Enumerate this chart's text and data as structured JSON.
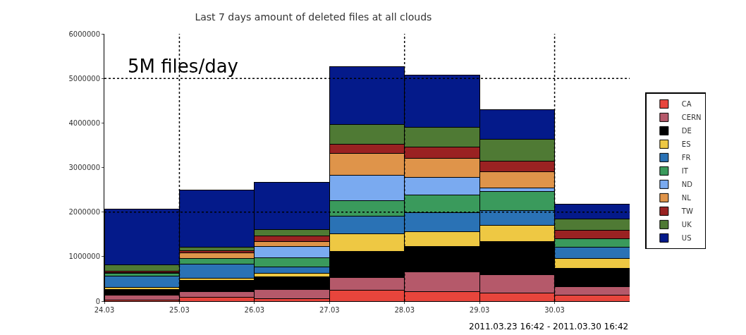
{
  "chart_data": {
    "type": "bar",
    "title": "Last 7 days amount of deleted files at all clouds",
    "stacked": true,
    "x": [
      "2011-03-24T12:00",
      "2011-03-25T12:00",
      "2011-03-26T12:00",
      "2011-03-27T12:00",
      "2011-03-28T12:00",
      "2011-03-29T12:00",
      "2011-03-30T12:00"
    ],
    "xlim": [
      "2011-03-24",
      "2011-03-31"
    ],
    "xticks": [
      {
        "value": "2011-03-24",
        "label": "24.03"
      },
      {
        "value": "2011-03-25",
        "label": "25.03"
      },
      {
        "value": "2011-03-26",
        "label": "26.03"
      },
      {
        "value": "2011-03-27",
        "label": "27.03"
      },
      {
        "value": "2011-03-28",
        "label": "28.03"
      },
      {
        "value": "2011-03-29",
        "label": "29.03"
      },
      {
        "value": "2011-03-30",
        "label": "30.03"
      }
    ],
    "ylim": [
      0,
      6000000
    ],
    "yticks": [
      0,
      1000000,
      2000000,
      3000000,
      4000000,
      5000000,
      6000000
    ],
    "series": [
      {
        "name": "CA",
        "color": "#e8453c",
        "values": [
          20000,
          80000,
          50000,
          240000,
          210000,
          190000,
          130000
        ]
      },
      {
        "name": "CERN",
        "color": "#b5596a",
        "values": [
          120000,
          140000,
          210000,
          290000,
          450000,
          400000,
          190000
        ]
      },
      {
        "name": "DE",
        "color": "#000000",
        "values": [
          120000,
          240000,
          290000,
          580000,
          560000,
          740000,
          420000
        ]
      },
      {
        "name": "ES",
        "color": "#eec843",
        "values": [
          50000,
          60000,
          80000,
          400000,
          340000,
          370000,
          210000
        ]
      },
      {
        "name": "FR",
        "color": "#2a72b5",
        "values": [
          260000,
          310000,
          130000,
          400000,
          420000,
          340000,
          260000
        ]
      },
      {
        "name": "IT",
        "color": "#3a9a5c",
        "values": [
          50000,
          130000,
          210000,
          340000,
          400000,
          420000,
          190000
        ]
      },
      {
        "name": "ND",
        "color": "#7aaaf0",
        "values": [
          0,
          0,
          260000,
          580000,
          400000,
          80000,
          0
        ]
      },
      {
        "name": "NL",
        "color": "#df944a",
        "values": [
          20000,
          130000,
          110000,
          480000,
          420000,
          370000,
          0
        ]
      },
      {
        "name": "TW",
        "color": "#9a2222",
        "values": [
          30000,
          40000,
          130000,
          210000,
          260000,
          240000,
          190000
        ]
      },
      {
        "name": "UK",
        "color": "#4f7a34",
        "values": [
          140000,
          80000,
          130000,
          450000,
          450000,
          480000,
          260000
        ]
      },
      {
        "name": "US",
        "color": "#041a8a",
        "values": [
          1260000,
          1290000,
          1060000,
          1300000,
          1170000,
          670000,
          330000
        ]
      }
    ],
    "ref_lines": [
      {
        "axis": "y",
        "value": 5000000,
        "line_style": "dotted",
        "color": "#000000"
      },
      {
        "axis": "y",
        "value": 2000000,
        "line_style": "dotted",
        "color": "#000000"
      },
      {
        "axis": "x",
        "value": "2011-03-25",
        "line_style": "dotted",
        "color": "#000000"
      },
      {
        "axis": "x",
        "value": "2011-03-28",
        "line_style": "dotted",
        "color": "#000000"
      },
      {
        "axis": "x",
        "value": "2011-03-30",
        "line_style": "dotted",
        "color": "#000000"
      }
    ],
    "annotations": [
      {
        "text": "5M files/day",
        "x": "2011-03-24T07:00",
        "y": 5000000
      },
      "2011.03.23 16:42 - 2011.03.30 16:42"
    ],
    "legend": "right"
  }
}
